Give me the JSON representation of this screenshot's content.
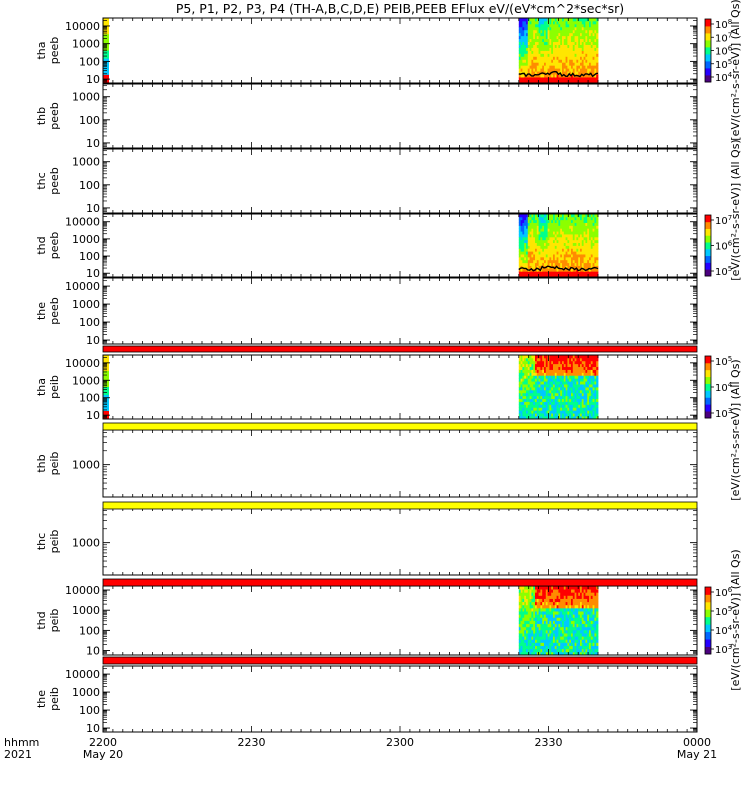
{
  "chart_data": {
    "type": "heatmap",
    "title": "P5, P1, P2, P3, P4 (TH-A,B,C,D,E) PEIB,PEEB EFlux eV/(eV*cm^2*sec*sr)",
    "xaxis": {
      "tick_labels": [
        "2200",
        "2230",
        "2300",
        "2330",
        "0000"
      ],
      "date_labels": [
        "May 20",
        "",
        "",
        "",
        "May 21"
      ],
      "row_label_time": "hhmm",
      "row_label_year": "2021"
    },
    "panels": [
      {
        "probe": "tha",
        "product": "peeb",
        "yticks": [
          "10",
          "100",
          "1000",
          "10000"
        ],
        "colorbar": {
          "ticks": [
            "10^4",
            "10^5",
            "10^6",
            "10^7",
            "10^8"
          ]
        },
        "data": [
          {
            "x": [
              "2200",
              "2201"
            ],
            "kind": "partial"
          },
          {
            "x": [
              "2324",
              "2340"
            ],
            "kind": "electron"
          }
        ]
      },
      {
        "probe": "thb",
        "product": "peeb",
        "yticks": [
          "10",
          "100",
          "1000"
        ],
        "data": []
      },
      {
        "probe": "thc",
        "product": "peeb",
        "yticks": [
          "10",
          "100",
          "1000"
        ],
        "data": []
      },
      {
        "probe": "thd",
        "product": "peeb",
        "yticks": [
          "10",
          "100",
          "1000",
          "10000"
        ],
        "colorbar": {
          "ticks": [
            "10^5",
            "10^6",
            "10^7"
          ]
        },
        "data": [
          {
            "x": [
              "2324",
              "2340"
            ],
            "kind": "electron"
          }
        ]
      },
      {
        "probe": "the",
        "product": "peeb",
        "yticks": [
          "10",
          "100",
          "1000",
          "10000"
        ],
        "data": []
      },
      {
        "probe": "tha",
        "product": "peib",
        "yticks": [
          "10",
          "100",
          "1000",
          "10000"
        ],
        "colorbar": {
          "ticks": [
            "10^3",
            "10^4",
            "10^5"
          ]
        },
        "data": [
          {
            "x": [
              "2200",
              "2201"
            ],
            "kind": "partial"
          },
          {
            "x": [
              "2324",
              "2340"
            ],
            "kind": "ion"
          }
        ]
      },
      {
        "probe": "thb",
        "product": "peib",
        "yticks": [
          "1000"
        ],
        "data": []
      },
      {
        "probe": "thc",
        "product": "peib",
        "yticks": [
          "1000"
        ],
        "data": []
      },
      {
        "probe": "thd",
        "product": "peib",
        "yticks": [
          "10",
          "100",
          "1000",
          "10000"
        ],
        "colorbar": {
          "ticks": [
            "10^3",
            "10^4",
            "10^5",
            "10^6"
          ]
        },
        "data": [
          {
            "x": [
              "2324",
              "2340"
            ],
            "kind": "ion"
          }
        ]
      },
      {
        "probe": "the",
        "product": "peib",
        "yticks": [
          "10",
          "100",
          "1000",
          "10000"
        ],
        "data": []
      }
    ],
    "bars": [
      {
        "after_panel": 4,
        "color": "#ff0000"
      },
      {
        "after_panel": 5,
        "color": "#ffff00"
      },
      {
        "after_panel": 6,
        "color": "#ffff00"
      },
      {
        "after_panel": 7,
        "color": "#ff0000"
      },
      {
        "after_panel": 8,
        "color": "#ff0000"
      }
    ],
    "colorbar_titles": [
      "[eV/(cm^2-s-sr-eV)] (All Qs)",
      "[eV/(cm^2-s-sr-eV)] (All Qs)",
      "[eV/(cm^2-s-sr-eV)] (All Qs)",
      "[eV/(cm^2-s-sr-eV)] (All Qs)"
    ],
    "colors": {
      "palette": [
        "#4b007f",
        "#2600ff",
        "#0066ff",
        "#00c8ff",
        "#00ff8c",
        "#8cff00",
        "#ffe600",
        "#ff8c00",
        "#ff0000"
      ],
      "low_energy_band": "#ff0000",
      "boundary_trace": "#000000"
    }
  }
}
